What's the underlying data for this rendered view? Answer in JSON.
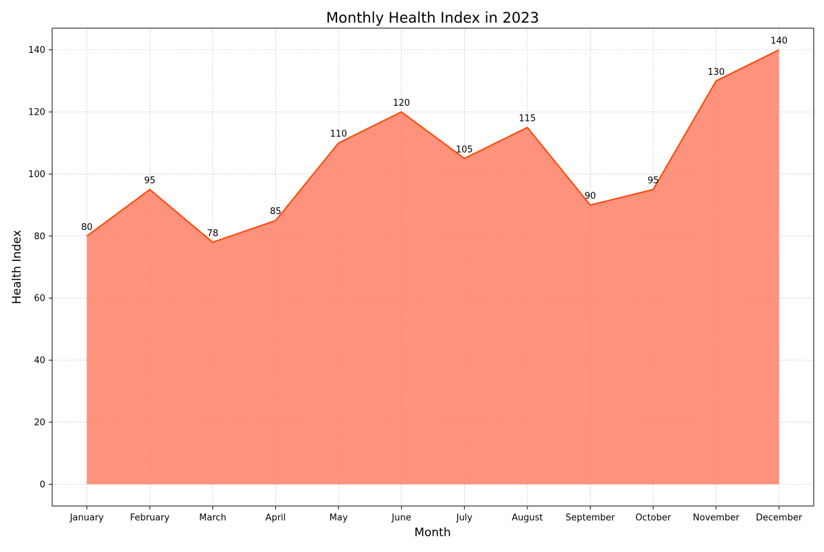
{
  "chart_data": {
    "type": "area",
    "title": "Monthly Health Index in 2023",
    "xlabel": "Month",
    "ylabel": "Health Index",
    "categories": [
      "January",
      "February",
      "March",
      "April",
      "May",
      "June",
      "July",
      "August",
      "September",
      "October",
      "November",
      "December"
    ],
    "series": [
      {
        "values": [
          80,
          95,
          78,
          85,
          110,
          120,
          105,
          115,
          90,
          95,
          130,
          140
        ]
      }
    ],
    "ylim": [
      -7,
      147
    ],
    "yticks": [
      0,
      20,
      40,
      60,
      80,
      100,
      120,
      140
    ],
    "grid": true,
    "data_labels": true,
    "colors": {
      "line": "#ff4500",
      "fill": "#ff7f66",
      "grid": "#b0b0b0"
    }
  }
}
